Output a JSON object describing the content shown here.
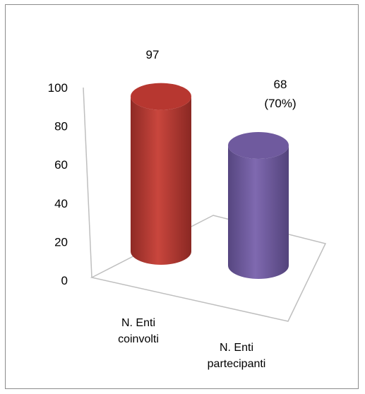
{
  "chart_data": {
    "type": "bar",
    "style": "3d-cylinder",
    "categories": [
      "N. Enti\ncoinvolti",
      "N. Enti\npartecipanti"
    ],
    "values": [
      97,
      68
    ],
    "data_labels": [
      "97",
      "68\n(70%)"
    ],
    "colors": [
      "#b73730",
      "#6f5a9e"
    ],
    "yticks": [
      "0",
      "20",
      "40",
      "60",
      "80",
      "100"
    ],
    "ylim": [
      0,
      100
    ],
    "grid": false,
    "legend": "none",
    "title": "",
    "xlabel": "",
    "ylabel": ""
  }
}
